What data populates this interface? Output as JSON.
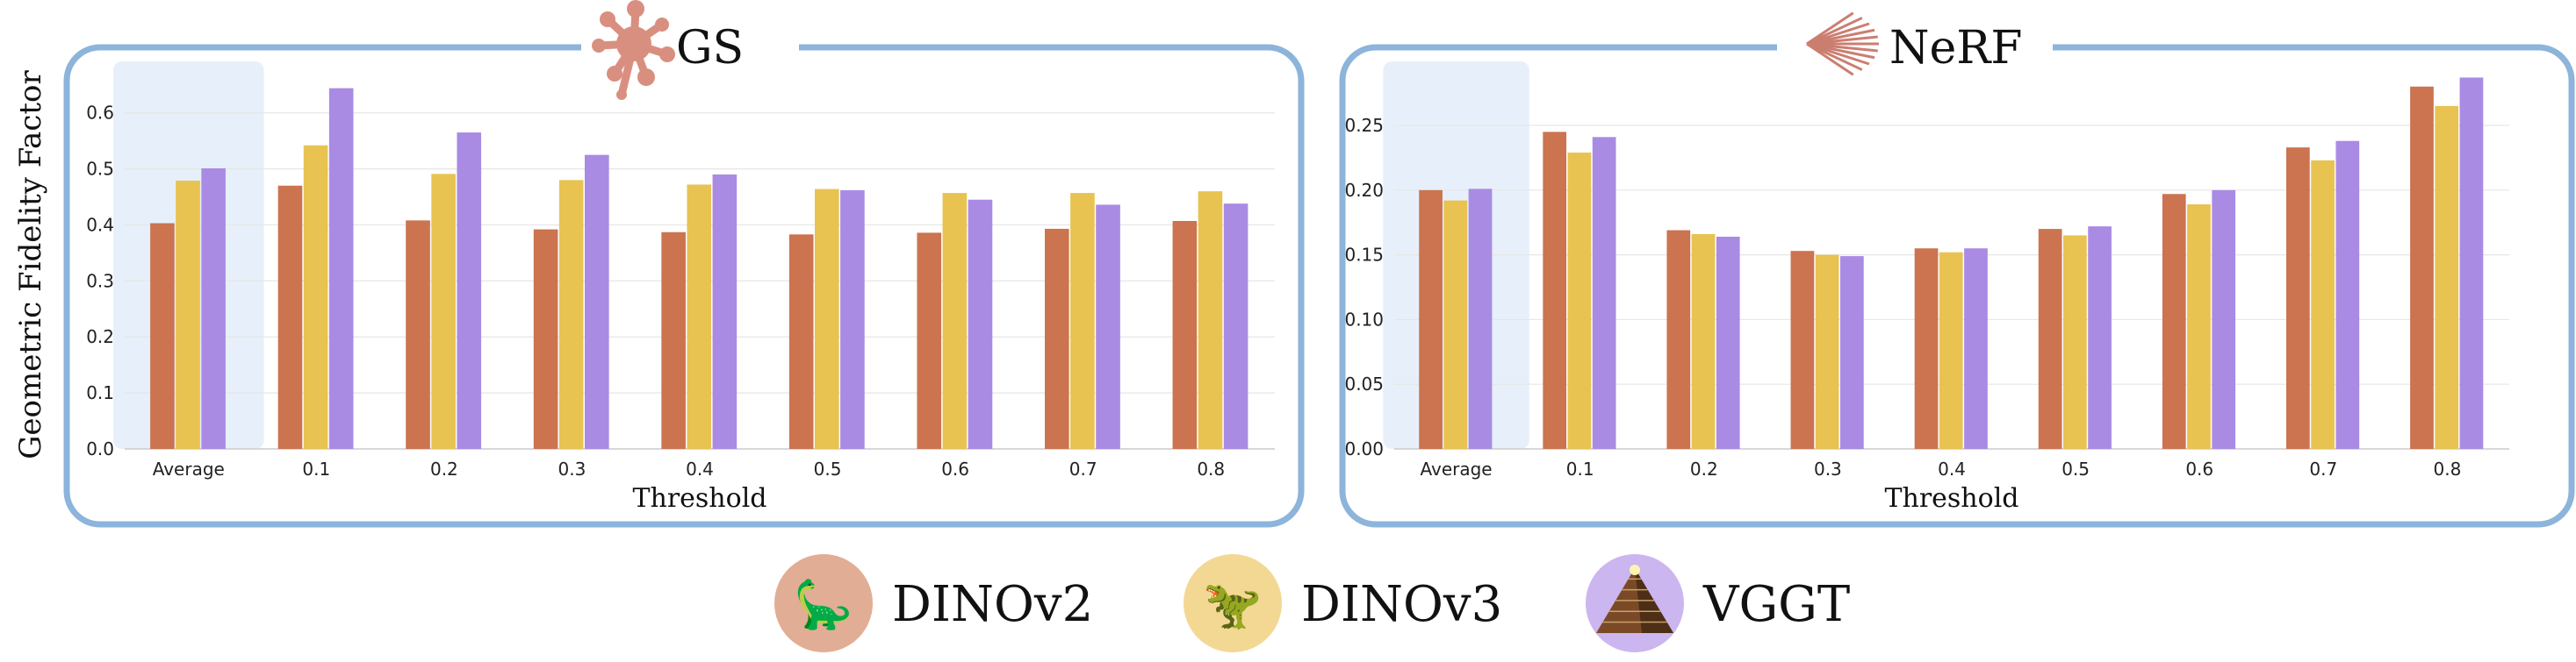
{
  "figure": {
    "ylabel": "Geometric Fidelity Factor"
  },
  "colors": {
    "panel_border": "#8db4da",
    "highlight_bg": "#e7f0fa",
    "grid": "#e6e6e6",
    "axis": "#cccccc",
    "dinov2": "#cb744f",
    "dinov3": "#e8c351",
    "vggt": "#a98be4",
    "dinov2_bubble": "#e2ad95",
    "dinov3_bubble": "#f3d894",
    "vggt_bubble": "#cbb6ef",
    "gs_icon": "#d98f7f",
    "nerf_icon": "#cb7e70"
  },
  "legend": {
    "items": [
      {
        "label": "DINOv2",
        "icon": "sauropod-dinosaur-icon",
        "glyph": "🦕"
      },
      {
        "label": "DINOv3",
        "icon": "t-rex-dinosaur-icon",
        "glyph": "🦖"
      },
      {
        "label": "VGGT",
        "icon": "pyramid-icon",
        "glyph": "⛰"
      }
    ]
  },
  "chart_data": [
    {
      "type": "bar",
      "title": "GS",
      "title_icon": "splat-icon",
      "xlabel": "Threshold",
      "ylabel": "Geometric Fidelity Factor",
      "categories": [
        "Average",
        "0.1",
        "0.2",
        "0.3",
        "0.4",
        "0.5",
        "0.6",
        "0.7",
        "0.8"
      ],
      "highlighted_category": "Average",
      "ylim": [
        0,
        0.67
      ],
      "yticks": [
        0.0,
        0.1,
        0.2,
        0.3,
        0.4,
        0.5,
        0.6
      ],
      "ytick_labels": [
        "0.0",
        "0.1",
        "0.2",
        "0.3",
        "0.4",
        "0.5",
        "0.6"
      ],
      "grid": true,
      "series": [
        {
          "name": "DINOv2",
          "values": [
            0.403,
            0.47,
            0.408,
            0.392,
            0.387,
            0.383,
            0.386,
            0.393,
            0.407
          ]
        },
        {
          "name": "DINOv3",
          "values": [
            0.479,
            0.542,
            0.491,
            0.48,
            0.472,
            0.464,
            0.457,
            0.457,
            0.46
          ]
        },
        {
          "name": "VGGT",
          "values": [
            0.501,
            0.644,
            0.565,
            0.525,
            0.49,
            0.462,
            0.445,
            0.436,
            0.438
          ]
        }
      ]
    },
    {
      "type": "bar",
      "title": "NeRF",
      "title_icon": "nerf-rays-icon",
      "xlabel": "Threshold",
      "ylabel": "",
      "categories": [
        "Average",
        "0.1",
        "0.2",
        "0.3",
        "0.4",
        "0.5",
        "0.6",
        "0.7",
        "0.8"
      ],
      "highlighted_category": "Average",
      "ylim": [
        0,
        0.29
      ],
      "yticks": [
        0.0,
        0.05,
        0.1,
        0.15,
        0.2,
        0.25
      ],
      "ytick_labels": [
        "0.00",
        "0.05",
        "0.10",
        "0.15",
        "0.20",
        "0.25"
      ],
      "grid": true,
      "series": [
        {
          "name": "DINOv2",
          "values": [
            0.2,
            0.245,
            0.169,
            0.153,
            0.155,
            0.17,
            0.197,
            0.233,
            0.28
          ]
        },
        {
          "name": "DINOv3",
          "values": [
            0.192,
            0.229,
            0.166,
            0.15,
            0.152,
            0.165,
            0.189,
            0.223,
            0.265
          ]
        },
        {
          "name": "VGGT",
          "values": [
            0.201,
            0.241,
            0.164,
            0.149,
            0.155,
            0.172,
            0.2,
            0.238,
            0.287
          ]
        }
      ]
    }
  ]
}
